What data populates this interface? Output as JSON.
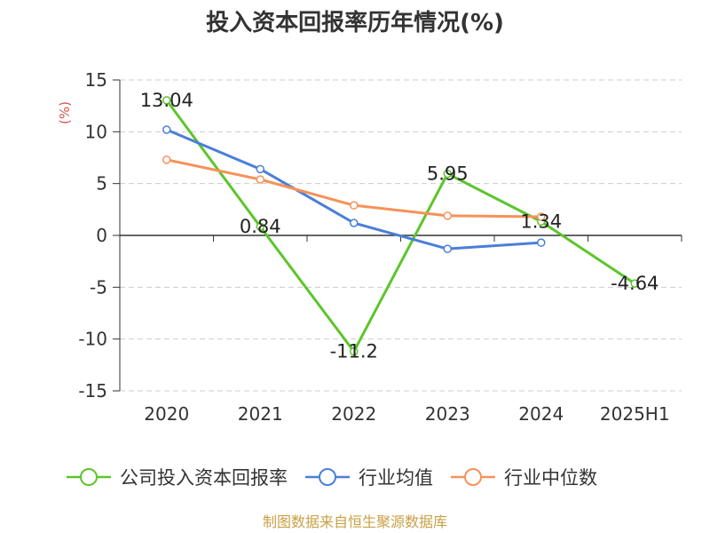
{
  "chart_data": {
    "type": "line",
    "title": "投入资本回报率历年情况(%)",
    "ylabel": "(%)",
    "categories": [
      "2020",
      "2021",
      "2022",
      "2023",
      "2024",
      "2025H1"
    ],
    "ylim": [
      -15,
      15
    ],
    "yticks": [
      "15",
      "10",
      "5",
      "0",
      "-5",
      "-10",
      "-15"
    ],
    "grid": true,
    "legend_position": "bottom",
    "series": [
      {
        "name": "公司投入资本回报率",
        "color": "#5cc52b",
        "values": [
          13.04,
          0.84,
          -11.2,
          5.95,
          1.34,
          -4.64
        ],
        "labels": [
          "13.04",
          "0.84",
          "-11.2",
          "5.95",
          "1.34",
          "-4.64"
        ]
      },
      {
        "name": "行业均值",
        "color": "#4a7fd8",
        "values": [
          10.2,
          6.4,
          1.2,
          -1.3,
          -0.7,
          null
        ]
      },
      {
        "name": "行业中位数",
        "color": "#f5925a",
        "values": [
          7.3,
          5.4,
          2.9,
          1.9,
          1.8,
          null
        ]
      }
    ],
    "source": "制图数据来自恒生聚源数据库"
  }
}
